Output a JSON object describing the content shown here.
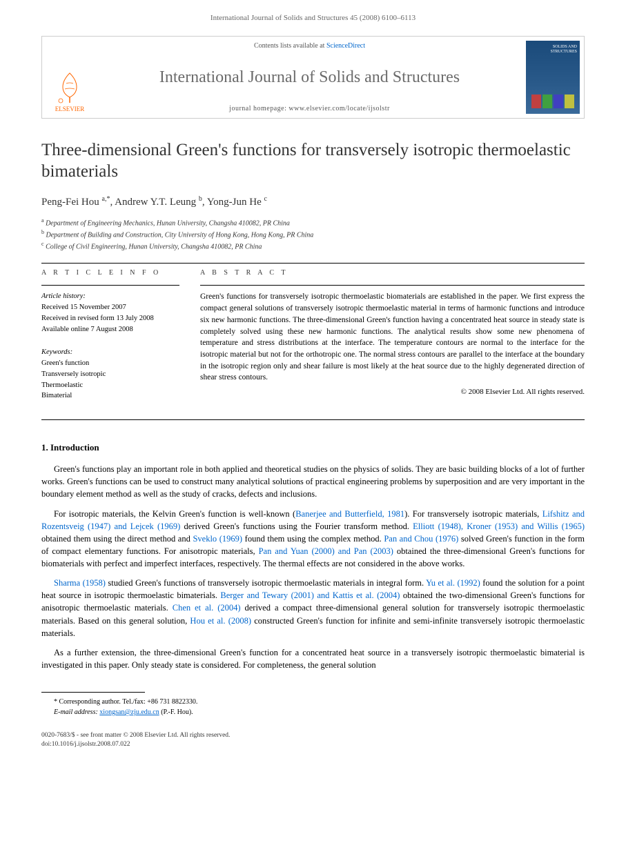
{
  "running_header": "International Journal of Solids and Structures 45 (2008) 6100–6113",
  "banner": {
    "contents_text": "Contents lists available at ",
    "contents_link": "ScienceDirect",
    "journal_title": "International Journal of Solids and Structures",
    "homepage_label": "journal homepage: www.elsevier.com/locate/ijsolstr",
    "publisher": "ELSEVIER",
    "cover_text": "SOLIDS AND STRUCTURES",
    "cover_bg": "#1a4a7a",
    "cover_bar_colors": [
      "#c04040",
      "#40a040",
      "#4040c0",
      "#c0c040"
    ]
  },
  "article": {
    "title": "Three-dimensional Green's functions for transversely isotropic thermoelastic bimaterials",
    "authors_html": "Peng-Fei Hou <sup>a,*</sup>, Andrew Y.T. Leung <sup>b</sup>, Yong-Jun He <sup>c</sup>",
    "affiliations": [
      {
        "sup": "a",
        "text": "Department of Engineering Mechanics, Hunan University, Changsha 410082, PR China"
      },
      {
        "sup": "b",
        "text": "Department of Building and Construction, City University of Hong Kong, Hong Kong, PR China"
      },
      {
        "sup": "c",
        "text": "College of Civil Engineering, Hunan University, Changsha 410082, PR China"
      }
    ]
  },
  "info": {
    "section_label": "A R T I C L E   I N F O",
    "history_label": "Article history:",
    "history": [
      "Received 15 November 2007",
      "Received in revised form 13 July 2008",
      "Available online 7 August 2008"
    ],
    "keywords_label": "Keywords:",
    "keywords": [
      "Green's function",
      "Transversely isotropic",
      "Thermoelastic",
      "Bimaterial"
    ]
  },
  "abstract": {
    "section_label": "A B S T R A C T",
    "text": "Green's functions for transversely isotropic thermoelastic biomaterials are established in the paper. We first express the compact general solutions of transversely isotropic thermoelastic material in terms of harmonic functions and introduce six new harmonic functions. The three-dimensional Green's function having a concentrated heat source in steady state is completely solved using these new harmonic functions. The analytical results show some new phenomena of temperature and stress distributions at the interface. The temperature contours are normal to the interface for the isotropic material but not for the orthotropic one. The normal stress contours are parallel to the interface at the boundary in the isotropic region only and shear failure is most likely at the heat source due to the highly degenerated direction of shear stress contours.",
    "copyright": "© 2008 Elsevier Ltd. All rights reserved."
  },
  "section1": {
    "heading": "1. Introduction",
    "p1_pre": "Green's functions play an important role in both applied and theoretical studies on the physics of solids. They are basic building blocks of a lot of further works. Green's functions can be used to construct many analytical solutions of practical engineering problems by superposition and are very important in the boundary element method as well as the study of cracks, defects and inclusions.",
    "p2_parts": [
      "For isotropic materials, the Kelvin Green's function is well-known (",
      "Banerjee and Butterfield, 1981",
      "). For transversely isotropic materials, ",
      "Lifshitz and Rozentsveig (1947) and Lejcek (1969)",
      " derived Green's functions using the Fourier transform method. ",
      "Elliott (1948), Kroner (1953) and Willis (1965)",
      " obtained them using the direct method and ",
      "Sveklo (1969)",
      " found them using the complex method. ",
      "Pan and Chou (1976)",
      " solved Green's function in the form of compact elementary functions. For anisotropic materials, ",
      "Pan and Yuan (2000) and Pan (2003)",
      " obtained the three-dimensional Green's functions for biomaterials with perfect and imperfect interfaces, respectively. The thermal effects are not considered in the above works."
    ],
    "p3_parts": [
      "Sharma (1958)",
      " studied Green's functions of transversely isotropic thermoelastic materials in integral form. ",
      "Yu et al. (1992)",
      " found the solution for a point heat source in isotropic thermoelastic bimaterials. ",
      "Berger and Tewary (2001) and Kattis et al. (2004)",
      " obtained the two-dimensional Green's functions for anisotropic thermoelastic materials. ",
      "Chen et al. (2004)",
      " derived a compact three-dimensional general solution for transversely isotropic thermoelastic materials. Based on this general solution, ",
      "Hou et al. (2008)",
      " constructed Green's function for infinite and semi-infinite transversely isotropic thermoelastic materials."
    ],
    "p4": "As a further extension, the three-dimensional Green's function for a concentrated heat source in a transversely isotropic thermoelastic bimaterial is investigated in this paper. Only steady state is considered. For completeness, the general solution"
  },
  "footnote": {
    "corr": "* Corresponding author. Tel./fax: +86 731 8822330.",
    "email_label": "E-mail address:",
    "email": "xiongsan@zju.edu.cn",
    "email_suffix": " (P.-F. Hou)."
  },
  "bottom": {
    "line1": "0020-7683/$ - see front matter © 2008 Elsevier Ltd. All rights reserved.",
    "line2": "doi:10.1016/j.ijsolstr.2008.07.022"
  },
  "colors": {
    "link": "#0066cc",
    "text": "#333333",
    "elsevier_orange": "#ff6600"
  }
}
